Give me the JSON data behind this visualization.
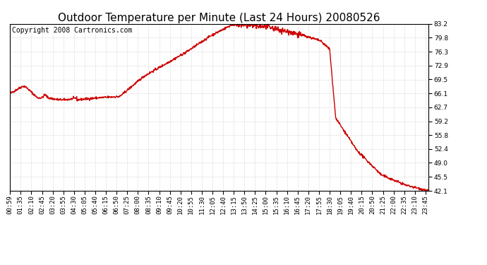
{
  "title": "Outdoor Temperature per Minute (Last 24 Hours) 20080526",
  "copyright_text": "Copyright 2008 Cartronics.com",
  "line_color": "#cc0000",
  "background_color": "#ffffff",
  "plot_bg_color": "#ffffff",
  "grid_color": "#c0c0c0",
  "yticks": [
    42.1,
    45.5,
    49.0,
    52.4,
    55.8,
    59.2,
    62.7,
    66.1,
    69.5,
    72.9,
    76.3,
    79.8,
    83.2
  ],
  "ymin": 42.1,
  "ymax": 83.2,
  "xtick_labels": [
    "00:59",
    "01:35",
    "02:10",
    "02:45",
    "03:20",
    "03:55",
    "04:30",
    "05:05",
    "05:40",
    "06:15",
    "06:50",
    "07:25",
    "08:00",
    "08:35",
    "09:10",
    "09:45",
    "10:20",
    "10:55",
    "11:30",
    "12:05",
    "12:40",
    "13:15",
    "13:50",
    "14:25",
    "15:00",
    "15:35",
    "16:10",
    "16:45",
    "17:20",
    "17:55",
    "18:30",
    "19:05",
    "19:40",
    "20:15",
    "20:50",
    "21:25",
    "22:00",
    "22:35",
    "23:10",
    "23:45"
  ],
  "title_fontsize": 11,
  "copyright_fontsize": 7,
  "tick_fontsize": 6.5,
  "line_width": 1.0
}
